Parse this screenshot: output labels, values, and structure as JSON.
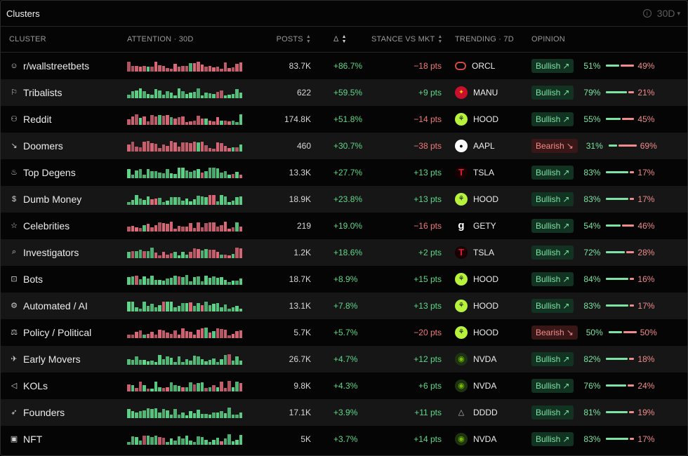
{
  "header": {
    "title": "Clusters",
    "range": "30D"
  },
  "columns": {
    "cluster": "CLUSTER",
    "attention": "ATTENTION · 30D",
    "posts": "POSTS",
    "delta": "Δ",
    "stance": "STANCE VS MKT",
    "trending": "TRENDING · 7D",
    "opinion": "OPINION"
  },
  "colors": {
    "bull": "#7de3a4",
    "bear": "#f08c8c",
    "bull_spark": "#5fd88a",
    "bear_spark": "#e06a7a"
  },
  "rows": [
    {
      "icon": "reddit-icon",
      "glyph": "☺",
      "name": "r/wallstreetbets",
      "attention_trend": "bear",
      "posts": "83.7K",
      "delta": "+86.7%",
      "stance": "−18 pts",
      "stance_sign": "neg",
      "ticker": "ORCL",
      "logo": "oracle-logo",
      "opinion": "Bullish",
      "opinion_type": "bull",
      "bull_pct": "51%",
      "bear_pct": "49%",
      "bull_share": 0.51
    },
    {
      "icon": "flag-icon",
      "glyph": "⚐",
      "name": "Tribalists",
      "attention_trend": "bull",
      "posts": "622",
      "delta": "+59.5%",
      "stance": "+9 pts",
      "stance_sign": "pos",
      "ticker": "MANU",
      "logo": "manu-logo",
      "opinion": "Bullish",
      "opinion_type": "bull",
      "bull_pct": "79%",
      "bear_pct": "21%",
      "bull_share": 0.79
    },
    {
      "icon": "users-icon",
      "glyph": "⚇",
      "name": "Reddit",
      "attention_trend": "bear",
      "posts": "174.8K",
      "delta": "+51.8%",
      "stance": "−14 pts",
      "stance_sign": "neg",
      "ticker": "HOOD",
      "logo": "robinhood-logo",
      "opinion": "Bullish",
      "opinion_type": "bull",
      "bull_pct": "55%",
      "bear_pct": "45%",
      "bull_share": 0.55
    },
    {
      "icon": "trend-down-icon",
      "glyph": "↘",
      "name": "Doomers",
      "attention_trend": "bear",
      "posts": "460",
      "delta": "+30.7%",
      "stance": "−38 pts",
      "stance_sign": "neg",
      "ticker": "AAPL",
      "logo": "apple-logo",
      "opinion": "Bearish",
      "opinion_type": "bear",
      "bull_pct": "31%",
      "bear_pct": "69%",
      "bull_share": 0.31
    },
    {
      "icon": "flame-icon",
      "glyph": "♨",
      "name": "Top Degens",
      "attention_trend": "bull",
      "posts": "13.3K",
      "delta": "+27.7%",
      "stance": "+13 pts",
      "stance_sign": "pos",
      "ticker": "TSLA",
      "logo": "tesla-logo",
      "opinion": "Bullish",
      "opinion_type": "bull",
      "bull_pct": "83%",
      "bear_pct": "17%",
      "bull_share": 0.83
    },
    {
      "icon": "money-icon",
      "glyph": "$",
      "name": "Dumb Money",
      "attention_trend": "bull",
      "posts": "18.9K",
      "delta": "+23.8%",
      "stance": "+13 pts",
      "stance_sign": "pos",
      "ticker": "HOOD",
      "logo": "robinhood-logo",
      "opinion": "Bullish",
      "opinion_type": "bull",
      "bull_pct": "83%",
      "bear_pct": "17%",
      "bull_share": 0.83
    },
    {
      "icon": "star-icon",
      "glyph": "☆",
      "name": "Celebrities",
      "attention_trend": "bear",
      "posts": "219",
      "delta": "+19.0%",
      "stance": "−16 pts",
      "stance_sign": "neg",
      "ticker": "GETY",
      "logo": "getty-logo",
      "opinion": "Bullish",
      "opinion_type": "bull",
      "bull_pct": "54%",
      "bear_pct": "46%",
      "bull_share": 0.54
    },
    {
      "icon": "search-icon",
      "glyph": "⌕",
      "name": "Investigators",
      "attention_trend": "mixed",
      "posts": "1.2K",
      "delta": "+18.6%",
      "stance": "+2 pts",
      "stance_sign": "pos",
      "ticker": "TSLA",
      "logo": "tesla-logo",
      "opinion": "Bullish",
      "opinion_type": "bull",
      "bull_pct": "72%",
      "bear_pct": "28%",
      "bull_share": 0.72
    },
    {
      "icon": "bot-icon",
      "glyph": "⊡",
      "name": "Bots",
      "attention_trend": "bull",
      "posts": "18.7K",
      "delta": "+8.9%",
      "stance": "+15 pts",
      "stance_sign": "pos",
      "ticker": "HOOD",
      "logo": "robinhood-logo",
      "opinion": "Bullish",
      "opinion_type": "bull",
      "bull_pct": "84%",
      "bear_pct": "16%",
      "bull_share": 0.84
    },
    {
      "icon": "chip-icon",
      "glyph": "⚙",
      "name": "Automated / AI",
      "attention_trend": "bull",
      "posts": "13.1K",
      "delta": "+7.8%",
      "stance": "+13 pts",
      "stance_sign": "pos",
      "ticker": "HOOD",
      "logo": "robinhood-logo",
      "opinion": "Bullish",
      "opinion_type": "bull",
      "bull_pct": "83%",
      "bear_pct": "17%",
      "bull_share": 0.83
    },
    {
      "icon": "gavel-icon",
      "glyph": "⚖",
      "name": "Policy / Political",
      "attention_trend": "bear",
      "posts": "5.7K",
      "delta": "+5.7%",
      "stance": "−20 pts",
      "stance_sign": "neg",
      "ticker": "HOOD",
      "logo": "robinhood-logo",
      "opinion": "Bearish",
      "opinion_type": "bear",
      "bull_pct": "50%",
      "bear_pct": "50%",
      "bull_share": 0.5
    },
    {
      "icon": "rocket-icon",
      "glyph": "✈",
      "name": "Early Movers",
      "attention_trend": "bull",
      "posts": "26.7K",
      "delta": "+4.7%",
      "stance": "+12 pts",
      "stance_sign": "pos",
      "ticker": "NVDA",
      "logo": "nvidia-logo",
      "opinion": "Bullish",
      "opinion_type": "bull",
      "bull_pct": "82%",
      "bear_pct": "18%",
      "bull_share": 0.82
    },
    {
      "icon": "megaphone-icon",
      "glyph": "◁",
      "name": "KOLs",
      "attention_trend": "mixed",
      "posts": "9.8K",
      "delta": "+4.3%",
      "stance": "+6 pts",
      "stance_sign": "pos",
      "ticker": "NVDA",
      "logo": "nvidia-logo",
      "opinion": "Bullish",
      "opinion_type": "bull",
      "bull_pct": "76%",
      "bear_pct": "24%",
      "bull_share": 0.76
    },
    {
      "icon": "rocket-icon",
      "glyph": "➶",
      "name": "Founders",
      "attention_trend": "bull",
      "posts": "17.1K",
      "delta": "+3.9%",
      "stance": "+11 pts",
      "stance_sign": "pos",
      "ticker": "DDDD",
      "logo": "dddd-logo",
      "opinion": "Bullish",
      "opinion_type": "bull",
      "bull_pct": "81%",
      "bear_pct": "19%",
      "bull_share": 0.81
    },
    {
      "icon": "image-icon",
      "glyph": "▣",
      "name": "NFT",
      "attention_trend": "bull",
      "posts": "5K",
      "delta": "+3.7%",
      "stance": "+14 pts",
      "stance_sign": "pos",
      "ticker": "NVDA",
      "logo": "nvidia-logo",
      "opinion": "Bullish",
      "opinion_type": "bull",
      "bull_pct": "83%",
      "bear_pct": "17%",
      "bull_share": 0.83
    }
  ]
}
